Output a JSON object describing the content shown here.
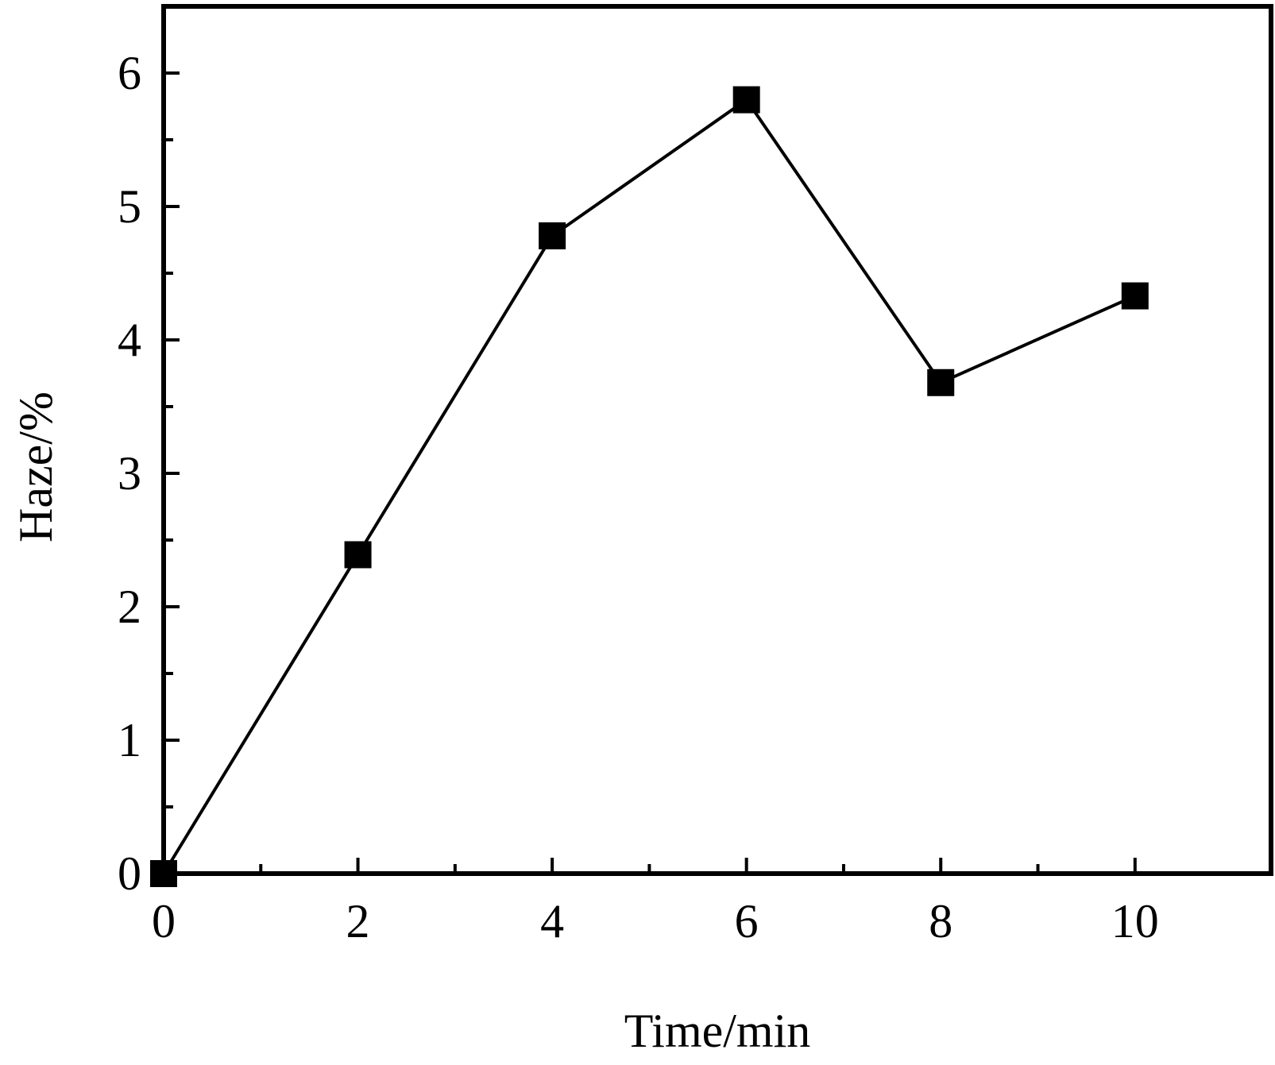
{
  "chart_data": {
    "type": "line",
    "title": "",
    "xlabel": "Time/min",
    "ylabel": "Haze/%",
    "xlim": [
      0,
      11.4
    ],
    "ylim": [
      0,
      6.5
    ],
    "x_major_ticks": [
      0,
      2,
      4,
      6,
      8,
      10
    ],
    "x_minor_ticks": [
      1,
      3,
      5,
      7,
      9
    ],
    "y_major_ticks": [
      0,
      1,
      2,
      3,
      4,
      5,
      6
    ],
    "y_minor_ticks": [
      0.5,
      1.5,
      2.5,
      3.5,
      4.5,
      5.5
    ],
    "x_tick_labels": [
      "0",
      "2",
      "4",
      "6",
      "8",
      "10"
    ],
    "y_tick_labels": [
      "0",
      "1",
      "2",
      "3",
      "4",
      "5",
      "6"
    ],
    "grid": false,
    "legend": "none",
    "series": [
      {
        "x": [
          0,
          2,
          4,
          6,
          8,
          10
        ],
        "values": [
          0,
          2.39,
          4.78,
          5.8,
          3.68,
          4.33
        ],
        "marker": "square",
        "color": "#000000"
      }
    ]
  }
}
